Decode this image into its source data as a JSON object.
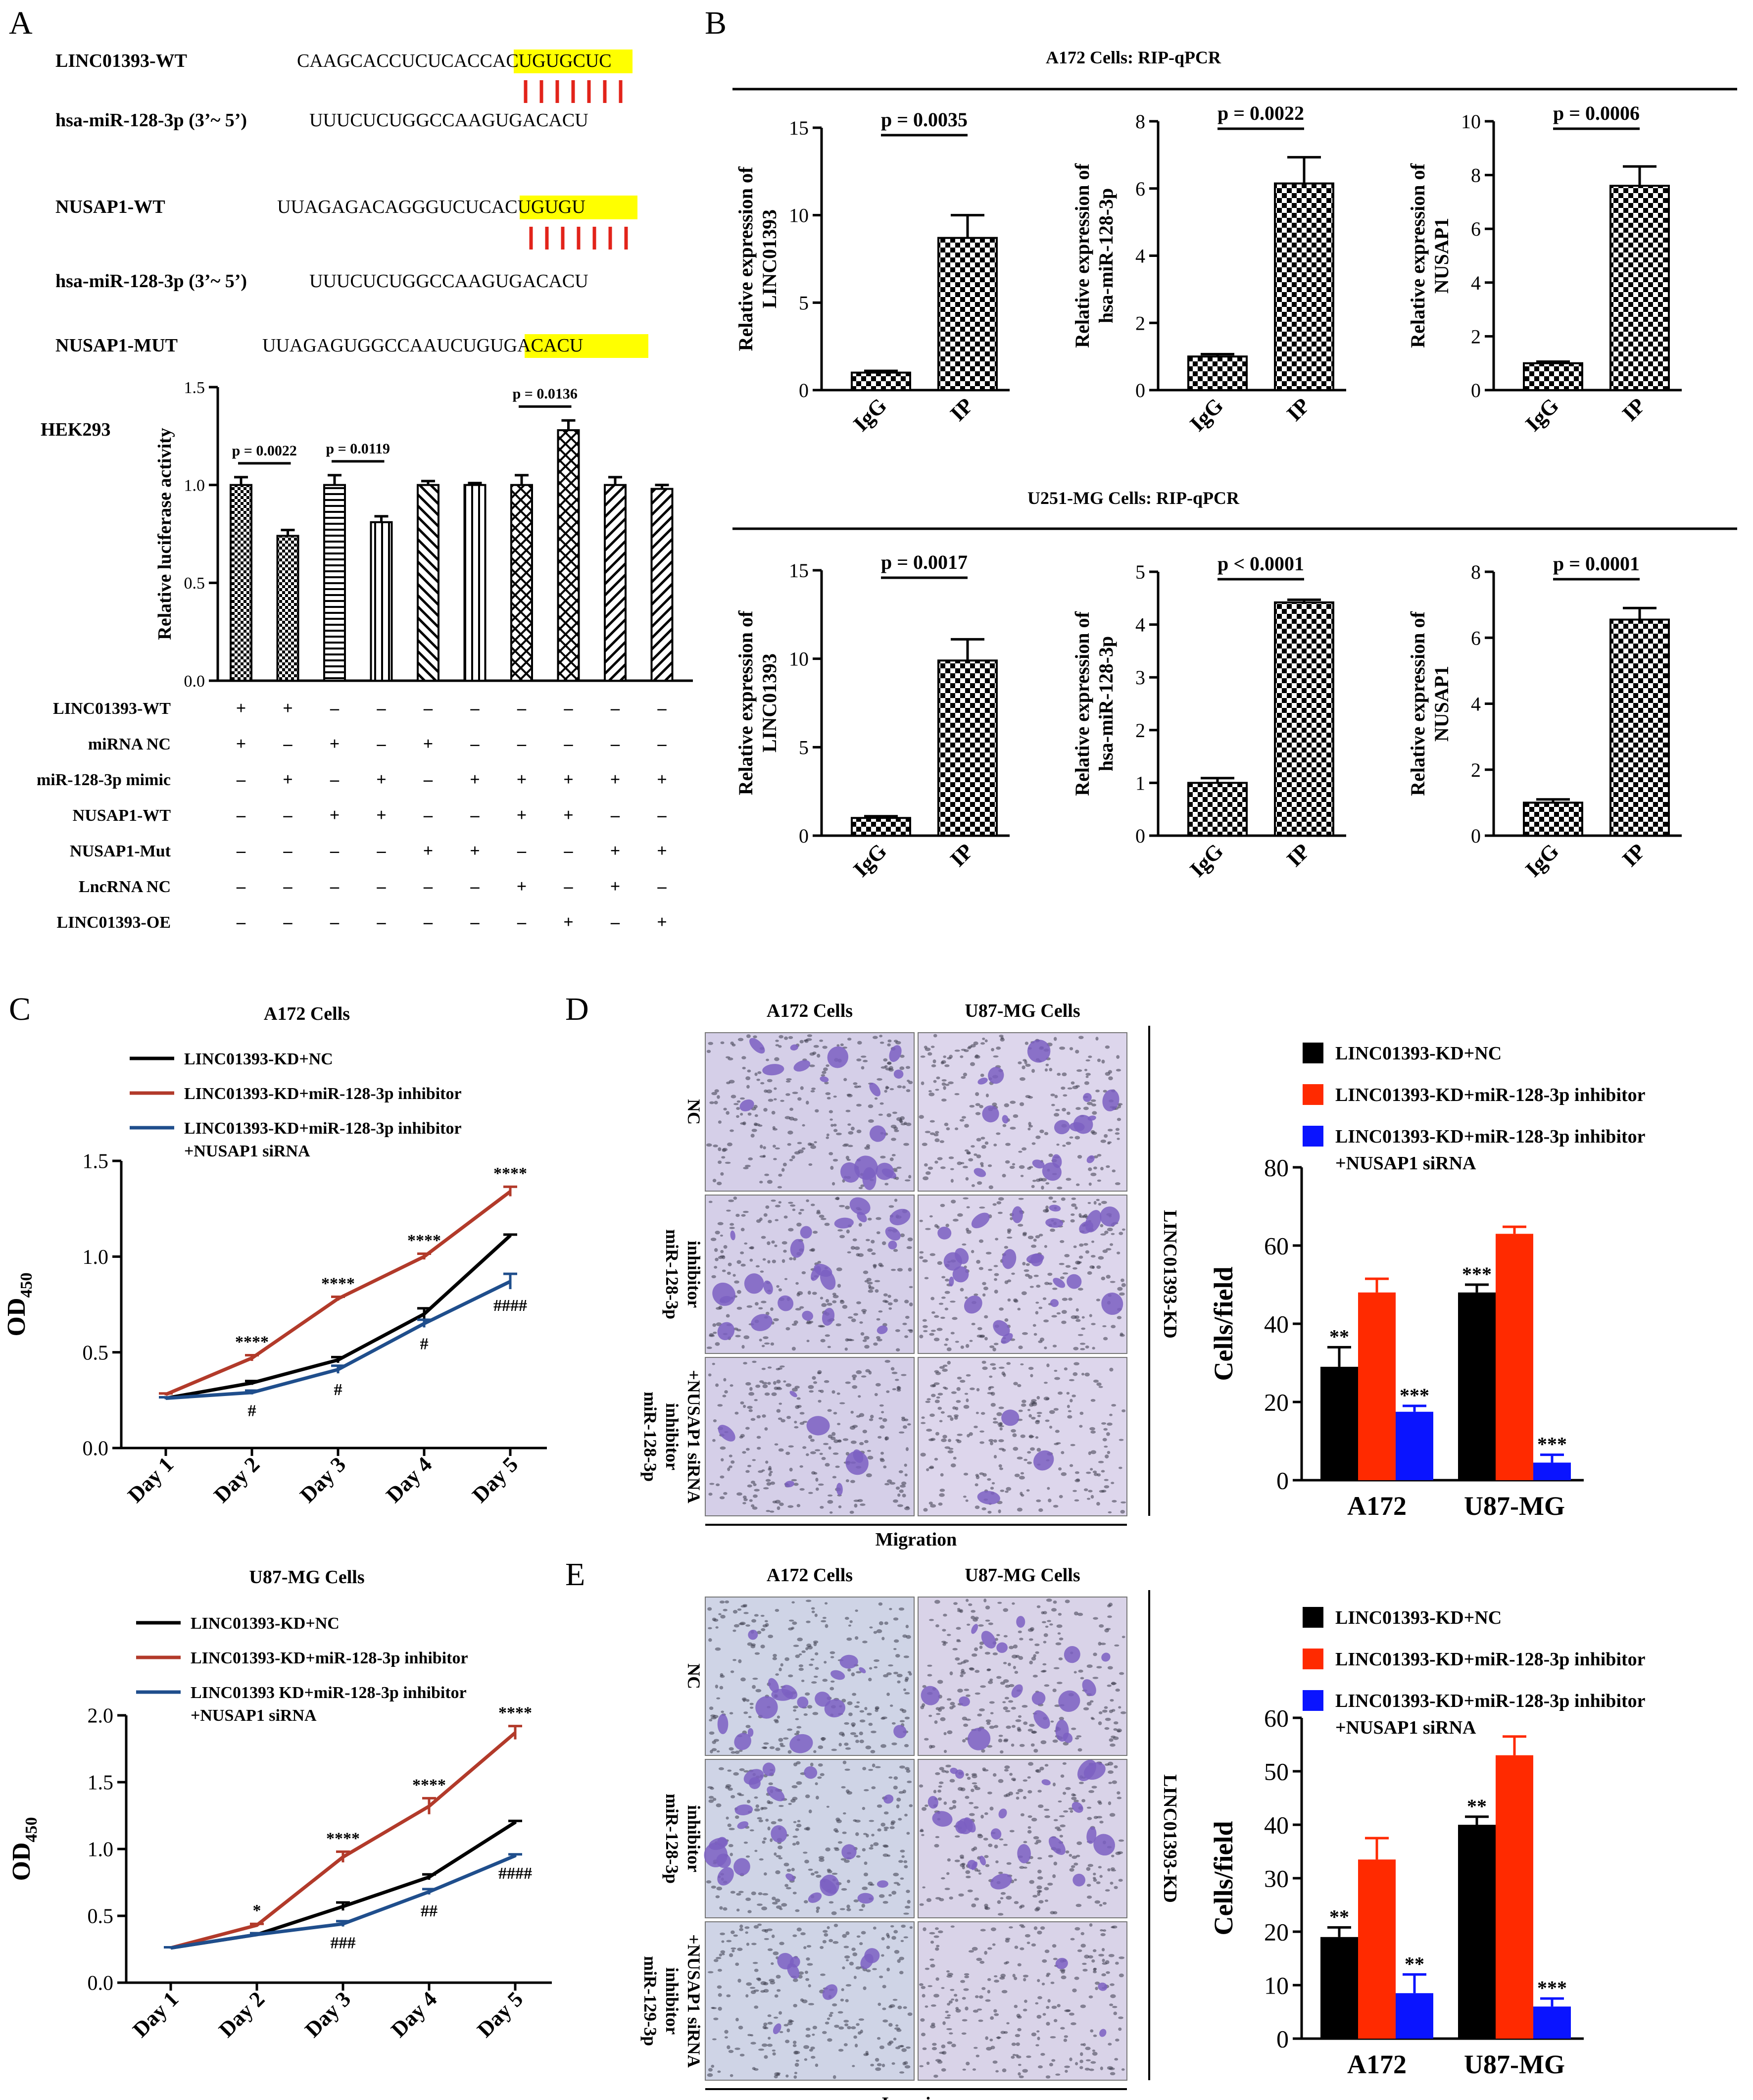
{
  "panel_labels": {
    "A": "A",
    "B": "B",
    "C": "C",
    "D": "D",
    "E": "E"
  },
  "panel_a": {
    "seq_rows": [
      {
        "label": "LINC01393-WT",
        "pre": "CAAGCACCUCUCAC",
        "hl": "CACUGUG",
        "post": "CUC"
      },
      {
        "label": "hsa-miR-128-3p (3’~ 5’)",
        "pre": "UUUCUCUGGCCAAGUGACACU",
        "hl": "",
        "post": ""
      },
      {
        "label": "NUSAP1-WT",
        "pre": "UUAGAGACAGGGUCU",
        "hl": "CACUGUG",
        "post": "U"
      },
      {
        "label": "hsa-miR-128-3p (3’~ 5’)",
        "pre": "UUUCUCUGGCCAAGUGACACU",
        "hl": "",
        "post": ""
      },
      {
        "label": "NUSAP1-MUT",
        "pre": "UUAGAGUGGCCAAUCU",
        "hl": "GUGACAC",
        "post": "U"
      }
    ],
    "cell_line": "HEK293",
    "ylabel": "Relative luciferase activity",
    "pvals": [
      "p = 0.0022",
      "p = 0.0119",
      "p = 0.0136"
    ],
    "treatments": [
      {
        "name": "LINC01393-WT",
        "signs": [
          "+",
          "+",
          "–",
          "–",
          "–",
          "–",
          "–",
          "–",
          "–",
          "–"
        ]
      },
      {
        "name": "miRNA NC",
        "signs": [
          "+",
          "–",
          "+",
          "–",
          "+",
          "–",
          "–",
          "–",
          "–",
          "–"
        ]
      },
      {
        "name": "miR-128-3p mimic",
        "signs": [
          "–",
          "+",
          "–",
          "+",
          "–",
          "+",
          "+",
          "+",
          "+",
          "+"
        ]
      },
      {
        "name": "NUSAP1-WT",
        "signs": [
          "–",
          "–",
          "+",
          "+",
          "–",
          "–",
          "+",
          "+",
          "–",
          "–"
        ]
      },
      {
        "name": "NUSAP1-Mut",
        "signs": [
          "–",
          "–",
          "–",
          "–",
          "+",
          "+",
          "–",
          "–",
          "+",
          "+"
        ]
      },
      {
        "name": "LncRNA NC",
        "signs": [
          "–",
          "–",
          "–",
          "–",
          "–",
          "–",
          "+",
          "–",
          "+",
          "–"
        ]
      },
      {
        "name": "LINC01393-OE",
        "signs": [
          "–",
          "–",
          "–",
          "–",
          "–",
          "–",
          "–",
          "+",
          "–",
          "+"
        ]
      }
    ]
  },
  "panel_b": {
    "titles": [
      "A172 Cells: RIP-qPCR",
      "U251-MG Cells: RIP-qPCR"
    ],
    "ylabels": [
      "Relative expression of LINC01393",
      "Relative expression of hsa-miR-128-3p",
      "Relative expression of NUSAP1"
    ]
  },
  "panel_c": {
    "titles": [
      "A172 Cells",
      "U87-MG Cells"
    ],
    "legend1": [
      "LINC01393-KD+NC",
      "LINC01393-KD+miR-128-3p inhibitor",
      "LINC01393-KD+miR-128-3p inhibitor",
      "+NUSAP1 siRNA"
    ],
    "legend2": [
      "LINC01393-KD+NC",
      "LINC01393-KD+miR-128-3p inhibitor",
      "LINC01393 KD+miR-128-3p inhibitor",
      "+NUSAP1 siRNA"
    ],
    "ylabel_main": "OD",
    "ylabel_sub": "450"
  },
  "panel_de": {
    "col_headers": [
      "A172 Cells",
      "U87-MG Cells"
    ],
    "row_labels_d": [
      "NC",
      "miR-128-3p inhibitor",
      "miR-128-3p inhibitor +NUSAP1 siRNA"
    ],
    "row_labels_e": [
      "NC",
      "miR-128-3p inhibitor",
      "miR-129-3p inhibitor +NUSAP1 siRNA"
    ],
    "side_label": "LINC01393-KD",
    "footer_d": "Migration",
    "footer_e": "Invasion",
    "legend": [
      "LINC01393-KD+NC",
      "LINC01393-KD+miR-128-3p inhibitor",
      "LINC01393-KD+miR-128-3p inhibitor",
      "+NUSAP1 siRNA"
    ],
    "ylabel": "Cells/field"
  },
  "colors": {
    "black": "#000000",
    "red": "#ff2a00",
    "blue": "#0a14ff",
    "line_red": "#b23a2a",
    "line_blue": "#1f4e8c",
    "highlight": "#ffff00",
    "match": "#e2231a",
    "stain": "#7b5fc2"
  },
  "chart_data": [
    {
      "id": "A-luc",
      "type": "bar",
      "title": "",
      "ylabel": "Relative luciferase activity",
      "ylim": [
        0,
        1.5
      ],
      "yticks": [
        0.0,
        0.5,
        1.0,
        1.5
      ],
      "values": [
        1.0,
        0.74,
        1.0,
        0.81,
        1.0,
        1.0,
        1.0,
        1.28,
        1.0,
        0.98
      ],
      "errors": [
        0.04,
        0.03,
        0.05,
        0.03,
        0.02,
        0.01,
        0.05,
        0.05,
        0.04,
        0.02
      ],
      "sig": [
        {
          "from": 0,
          "to": 1,
          "label": "p = 0.0022"
        },
        {
          "from": 2,
          "to": 3,
          "label": "p = 0.0119"
        },
        {
          "from": 6,
          "to": 7,
          "label": "p = 0.0136"
        }
      ]
    },
    {
      "id": "B1",
      "type": "bar",
      "categories": [
        "IgG",
        "IP"
      ],
      "values": [
        1.0,
        8.7
      ],
      "errors": [
        0.1,
        1.3
      ],
      "ylim": [
        0,
        15
      ],
      "yticks": [
        0,
        5,
        10,
        15
      ],
      "p": "p = 0.0035"
    },
    {
      "id": "B2",
      "type": "bar",
      "categories": [
        "IgG",
        "IP"
      ],
      "values": [
        1.0,
        6.15
      ],
      "errors": [
        0.07,
        0.78
      ],
      "ylim": [
        0,
        8
      ],
      "yticks": [
        0,
        2,
        4,
        6,
        8
      ],
      "p": "p = 0.0022"
    },
    {
      "id": "B3",
      "type": "bar",
      "categories": [
        "IgG",
        "IP"
      ],
      "values": [
        1.0,
        7.6
      ],
      "errors": [
        0.06,
        0.72
      ],
      "ylim": [
        0,
        10
      ],
      "yticks": [
        0,
        2,
        4,
        6,
        8,
        10
      ],
      "p": "p = 0.0006"
    },
    {
      "id": "B4",
      "type": "bar",
      "categories": [
        "IgG",
        "IP"
      ],
      "values": [
        1.0,
        9.9
      ],
      "errors": [
        0.1,
        1.2
      ],
      "ylim": [
        0,
        15
      ],
      "yticks": [
        0,
        5,
        10,
        15
      ],
      "p": "p = 0.0017"
    },
    {
      "id": "B5",
      "type": "bar",
      "categories": [
        "IgG",
        "IP"
      ],
      "values": [
        1.0,
        4.42
      ],
      "errors": [
        0.09,
        0.05
      ],
      "ylim": [
        0,
        5
      ],
      "yticks": [
        0,
        1,
        2,
        3,
        4,
        5
      ],
      "p": "p < 0.0001"
    },
    {
      "id": "B6",
      "type": "bar",
      "categories": [
        "IgG",
        "IP"
      ],
      "values": [
        1.0,
        6.55
      ],
      "errors": [
        0.1,
        0.35
      ],
      "ylim": [
        0,
        8
      ],
      "yticks": [
        0,
        2,
        4,
        6,
        8
      ],
      "p": "p = 0.0001"
    },
    {
      "id": "C1",
      "type": "line",
      "title": "A172 Cells",
      "x": [
        "Day 1",
        "Day 2",
        "Day 3",
        "Day 4",
        "Day 5"
      ],
      "ylim": [
        0,
        1.5
      ],
      "yticks": [
        "0.0",
        "0.5",
        "1.0",
        "1.5"
      ],
      "series": [
        {
          "name": "LINC01393-KD+NC",
          "values": [
            0.26,
            0.34,
            0.46,
            0.7,
            1.11
          ],
          "errors": [
            0.005,
            0.01,
            0.015,
            0.03,
            0.005
          ]
        },
        {
          "name": "LINC01393-KD+miR-128-3p inhibitor",
          "values": [
            0.28,
            0.47,
            0.78,
            1.0,
            1.34
          ],
          "errors": [
            0.005,
            0.015,
            0.01,
            0.015,
            0.025
          ]
        },
        {
          "name": "LINC01393-KD+miR-128-3p inhibitor +NUSAP1 siRNA",
          "values": [
            0.26,
            0.29,
            0.41,
            0.65,
            0.87
          ],
          "errors": [
            0.005,
            0.01,
            0.02,
            0.02,
            0.04
          ]
        }
      ],
      "annotations": [
        {
          "x": 1,
          "s": 1,
          "t": "****",
          "pos": "above"
        },
        {
          "x": 2,
          "s": 1,
          "t": "****",
          "pos": "above"
        },
        {
          "x": 3,
          "s": 1,
          "t": "****",
          "pos": "above"
        },
        {
          "x": 4,
          "s": 1,
          "t": "****",
          "pos": "above"
        },
        {
          "x": 1,
          "s": 2,
          "t": "#",
          "pos": "below"
        },
        {
          "x": 2,
          "s": 2,
          "t": "#",
          "pos": "below"
        },
        {
          "x": 3,
          "s": 2,
          "t": "#",
          "pos": "below"
        },
        {
          "x": 4,
          "s": 2,
          "t": "####",
          "pos": "below"
        }
      ]
    },
    {
      "id": "C2",
      "type": "line",
      "title": "U87-MG Cells",
      "x": [
        "Day 1",
        "Day 2",
        "Day 3",
        "Day 4",
        "Day 5"
      ],
      "ylim": [
        0,
        2.0
      ],
      "yticks": [
        "0.0",
        "0.5",
        "1.0",
        "1.5",
        "2.0"
      ],
      "series": [
        {
          "name": "LINC01393-KD+NC",
          "values": [
            0.26,
            0.36,
            0.57,
            0.79,
            1.2
          ],
          "errors": [
            0.005,
            0.01,
            0.03,
            0.02,
            0.01
          ]
        },
        {
          "name": "LINC01393-KD+miR-128-3p inhibitor",
          "values": [
            0.26,
            0.43,
            0.94,
            1.32,
            1.87
          ],
          "errors": [
            0.005,
            0.01,
            0.04,
            0.06,
            0.05
          ]
        },
        {
          "name": "LINC01393 KD+miR-128-3p inhibitor +NUSAP1 siRNA",
          "values": [
            0.26,
            0.36,
            0.44,
            0.68,
            0.95
          ],
          "errors": [
            0.005,
            0.01,
            0.02,
            0.02,
            0.01
          ]
        }
      ],
      "annotations": [
        {
          "x": 1,
          "s": 1,
          "t": "*",
          "pos": "above"
        },
        {
          "x": 2,
          "s": 1,
          "t": "****",
          "pos": "above"
        },
        {
          "x": 3,
          "s": 1,
          "t": "****",
          "pos": "above"
        },
        {
          "x": 4,
          "s": 1,
          "t": "****",
          "pos": "above"
        },
        {
          "x": 2,
          "s": 2,
          "t": "###",
          "pos": "below"
        },
        {
          "x": 3,
          "s": 2,
          "t": "##",
          "pos": "below"
        },
        {
          "x": 4,
          "s": 2,
          "t": "####",
          "pos": "below"
        }
      ]
    },
    {
      "id": "D-bar",
      "type": "bar",
      "categories": [
        "A172",
        "U87-MG"
      ],
      "ylabel": "Cells/field",
      "ylim": [
        0,
        80
      ],
      "yticks": [
        0,
        20,
        40,
        60,
        80
      ],
      "series": [
        {
          "name": "LINC01393-KD+NC",
          "values": [
            29,
            48
          ],
          "errors": [
            5,
            2
          ],
          "stars": [
            "**",
            "***"
          ]
        },
        {
          "name": "LINC01393-KD+miR-128-3p inhibitor",
          "values": [
            48,
            63
          ],
          "errors": [
            3.5,
            1.8
          ],
          "stars": [
            "",
            ""
          ]
        },
        {
          "name": "LINC01393-KD+miR-128-3p inhibitor +NUSAP1 siRNA",
          "values": [
            17.5,
            4.5
          ],
          "errors": [
            1.5,
            2
          ],
          "stars": [
            "***",
            "***"
          ]
        }
      ]
    },
    {
      "id": "E-bar",
      "type": "bar",
      "categories": [
        "A172",
        "U87-MG"
      ],
      "ylabel": "Cells/field",
      "ylim": [
        0,
        60
      ],
      "yticks": [
        0,
        10,
        20,
        30,
        40,
        50,
        60
      ],
      "series": [
        {
          "name": "LINC01393-KD+NC",
          "values": [
            19,
            40
          ],
          "errors": [
            1.8,
            1.5
          ],
          "stars": [
            "**",
            "**"
          ]
        },
        {
          "name": "LINC01393-KD+miR-128-3p inhibitor",
          "values": [
            33.5,
            53
          ],
          "errors": [
            4,
            3.5
          ],
          "stars": [
            "",
            ""
          ]
        },
        {
          "name": "LINC01393-KD+miR-128-3p inhibitor +NUSAP1 siRNA",
          "values": [
            8.5,
            6
          ],
          "errors": [
            3.5,
            1.5
          ],
          "stars": [
            "**",
            "***"
          ]
        }
      ]
    }
  ]
}
